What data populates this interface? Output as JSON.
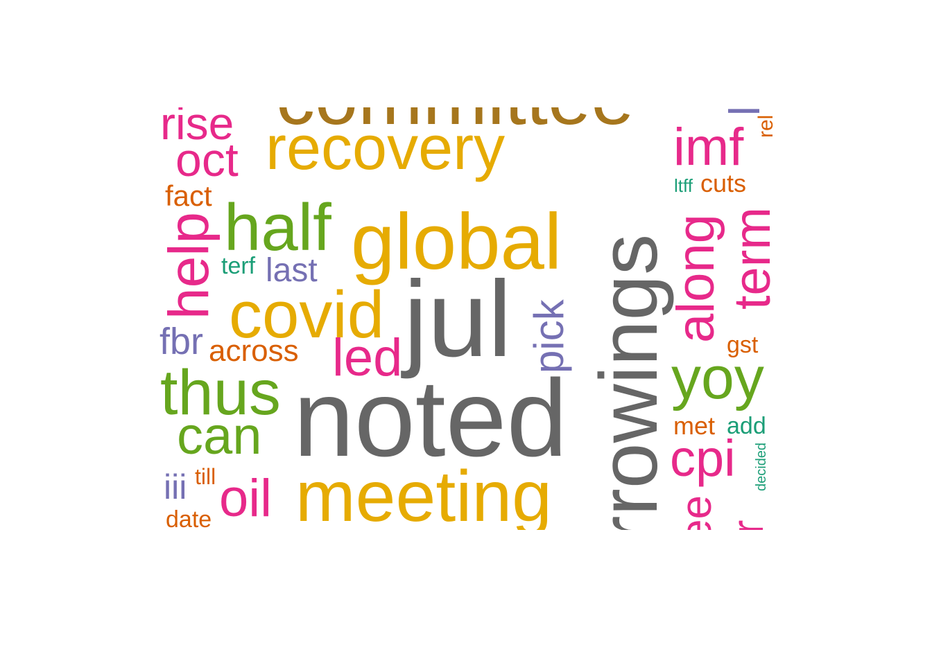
{
  "words": [
    {
      "text": "committee",
      "color": "#a6761d"
    },
    {
      "text": "rise",
      "color": "#e7298a"
    },
    {
      "text": "recovery",
      "color": "#e6ab02"
    },
    {
      "text": "borrowings",
      "color": "#666666"
    },
    {
      "text": "imf",
      "color": "#e7298a"
    },
    {
      "text": "oct",
      "color": "#e7298a"
    },
    {
      "text": "fact",
      "color": "#d95f02"
    },
    {
      "text": "ltff",
      "color": "#1b9e77"
    },
    {
      "text": "cuts",
      "color": "#d95f02"
    },
    {
      "text": "help",
      "color": "#e7298a"
    },
    {
      "text": "half",
      "color": "#66a61e"
    },
    {
      "text": "global",
      "color": "#e6ab02"
    },
    {
      "text": "along",
      "color": "#e7298a"
    },
    {
      "text": "term",
      "color": "#e7298a"
    },
    {
      "text": "terf",
      "color": "#1b9e77"
    },
    {
      "text": "last",
      "color": "#7570b3"
    },
    {
      "text": "covid",
      "color": "#e6ab02"
    },
    {
      "text": "jul",
      "color": "#666666"
    },
    {
      "text": "pick",
      "color": "#7570b3"
    },
    {
      "text": "fbr",
      "color": "#7570b3"
    },
    {
      "text": "across",
      "color": "#d95f02"
    },
    {
      "text": "led",
      "color": "#e7298a"
    },
    {
      "text": "gst",
      "color": "#d95f02"
    },
    {
      "text": "thus",
      "color": "#66a61e"
    },
    {
      "text": "yoy",
      "color": "#66a61e"
    },
    {
      "text": "noted",
      "color": "#666666"
    },
    {
      "text": "can",
      "color": "#66a61e"
    },
    {
      "text": "met",
      "color": "#d95f02"
    },
    {
      "text": "add",
      "color": "#1b9e77"
    },
    {
      "text": "cpi",
      "color": "#e7298a"
    },
    {
      "text": "decided",
      "color": "#1b9e77"
    },
    {
      "text": "iii",
      "color": "#7570b3"
    },
    {
      "text": "till",
      "color": "#d95f02"
    },
    {
      "text": "oil",
      "color": "#e7298a"
    },
    {
      "text": "meeting",
      "color": "#e6ab02"
    },
    {
      "text": "date",
      "color": "#d95f02"
    },
    {
      "text": "see",
      "color": "#e7298a"
    },
    {
      "text": "year",
      "color": "#e7298a"
    },
    {
      "text": "rel",
      "color": "#d95f02"
    },
    {
      "text": "l",
      "color": "#7570b3"
    }
  ]
}
